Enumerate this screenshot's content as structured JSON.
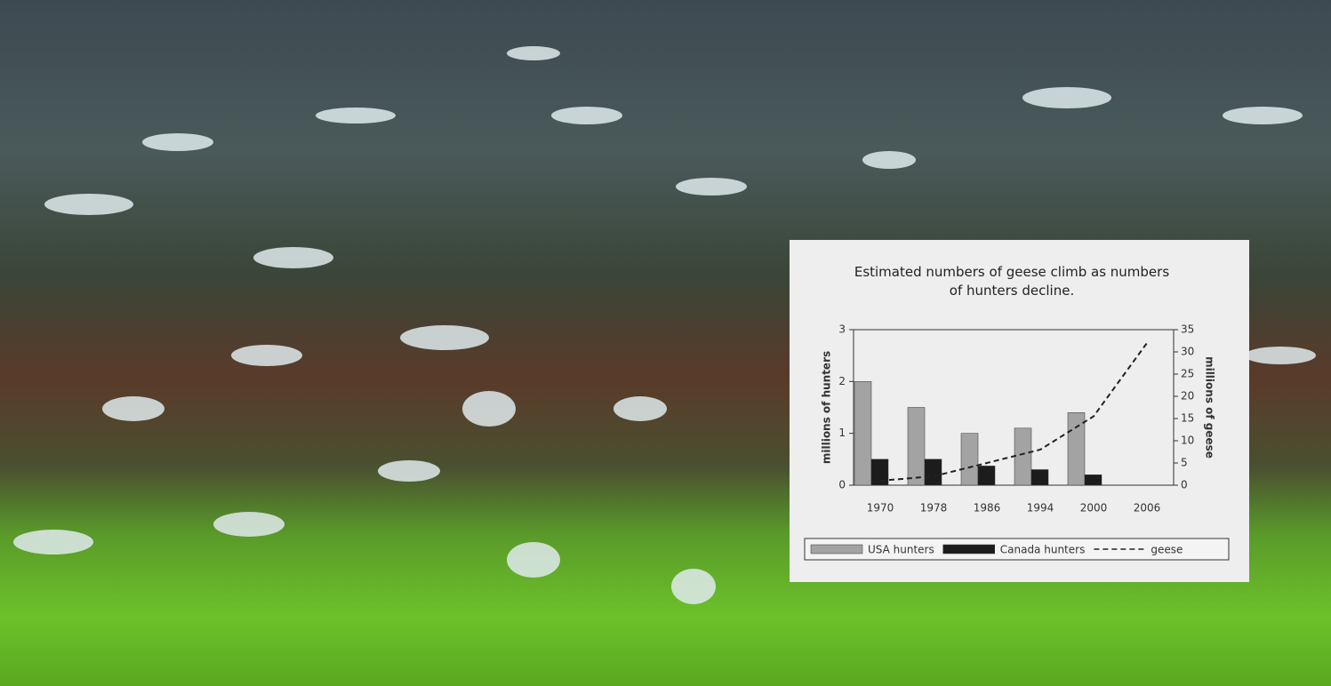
{
  "chart_data": {
    "type": "bar",
    "title": "Estimated numbers of geese climb as numbers of hunters decline.",
    "categories": [
      "1970",
      "1978",
      "1986",
      "1994",
      "2000",
      "2006"
    ],
    "y_label": "millions of hunters",
    "y2_label": "millions of geese",
    "ylim": [
      0,
      3
    ],
    "yticks": [
      0,
      1,
      2,
      3
    ],
    "y2lim": [
      0,
      35
    ],
    "y2ticks": [
      0,
      5,
      10,
      15,
      20,
      25,
      30,
      35
    ],
    "series": [
      {
        "name": "USA hunters",
        "color": "#a3a3a3",
        "values": [
          2.0,
          1.5,
          1.0,
          1.1,
          1.4,
          null
        ]
      },
      {
        "name": "Canada hunters",
        "color": "#1c1c1c",
        "values": [
          0.5,
          0.5,
          0.37,
          0.3,
          0.2,
          null
        ]
      },
      {
        "name": "geese",
        "type": "line",
        "axis": "y2",
        "color": "#222222",
        "values": [
          1,
          2,
          5,
          8,
          15.5,
          32
        ]
      }
    ]
  }
}
